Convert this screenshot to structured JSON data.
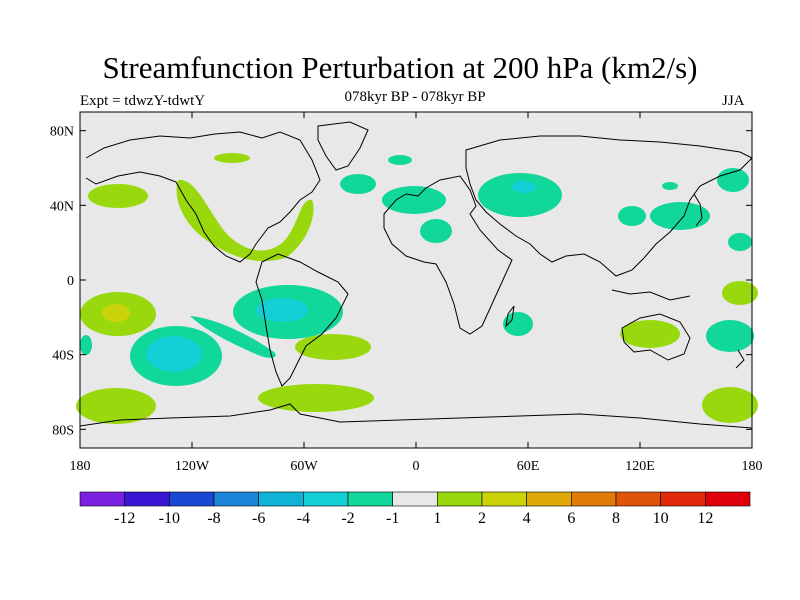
{
  "title": "Streamfunction Perturbation at 200 hPa (km2/s)",
  "subtitle": "078kyr BP - 078kyr BP",
  "experiment": "Expt = tdwzY-tdwtY",
  "season": "JJA",
  "map": {
    "projection": "cylindrical-equidistant",
    "lon_range": [
      -180,
      180
    ],
    "lat_range": [
      -90,
      90
    ],
    "lat_ticks": [
      {
        "lat": 80,
        "label": "80N"
      },
      {
        "lat": 40,
        "label": "40N"
      },
      {
        "lat": 0,
        "label": "0"
      },
      {
        "lat": -40,
        "label": "40S"
      },
      {
        "lat": -80,
        "label": "80S"
      }
    ],
    "lon_ticks": [
      {
        "lon": -180,
        "label": "180"
      },
      {
        "lon": -120,
        "label": "120W"
      },
      {
        "lon": -60,
        "label": "60W"
      },
      {
        "lon": 0,
        "label": "0"
      },
      {
        "lon": 60,
        "label": "60E"
      },
      {
        "lon": 120,
        "label": "120E"
      },
      {
        "lon": 180,
        "label": "180"
      }
    ],
    "background_color": "#e8e8e8"
  },
  "colorbar": {
    "colors": [
      "#7b1fe0",
      "#3a17d4",
      "#1949d4",
      "#1a85d9",
      "#10b3d6",
      "#14cfd6",
      "#12d79a",
      "#e8e8e8",
      "#9ad80e",
      "#cad30a",
      "#e0a90a",
      "#e07b0a",
      "#e0530a",
      "#e0280a",
      "#e0000a"
    ],
    "labels": [
      "-12",
      "-10",
      "-8",
      "-6",
      "-4",
      "-2",
      "-1",
      "1",
      "2",
      "4",
      "6",
      "8",
      "10",
      "12"
    ]
  }
}
